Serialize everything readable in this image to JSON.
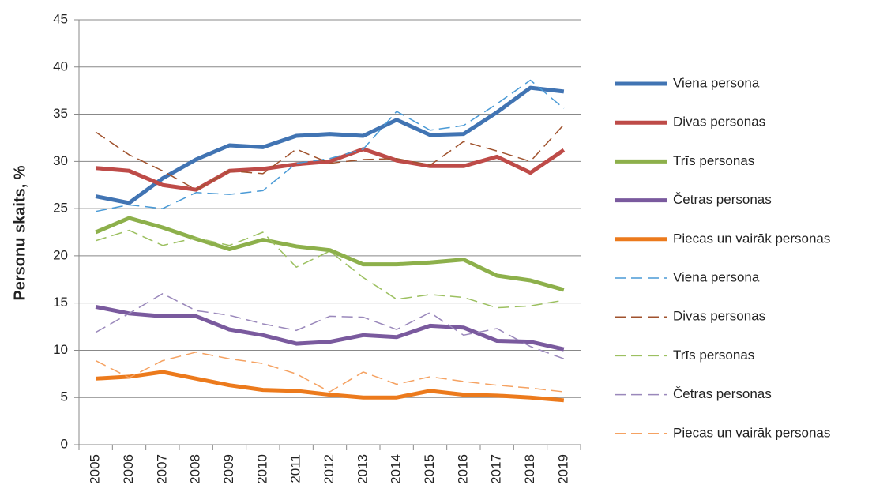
{
  "chart_data": {
    "type": "line",
    "y_label": "Personu skaits, %",
    "categories": [
      "2005",
      "2006",
      "2007",
      "2008",
      "2009",
      "2010",
      "2011",
      "2012",
      "2013",
      "2014",
      "2015",
      "2016",
      "2017",
      "2018",
      "2019"
    ],
    "ylim": [
      0,
      45
    ],
    "yticks": [
      0,
      5,
      10,
      15,
      20,
      25,
      30,
      35,
      40,
      45
    ],
    "grid": true,
    "legend": "right",
    "series": [
      {
        "name": "Viena persona",
        "color": "#4174b3",
        "style": "solid",
        "values": [
          26.3,
          25.6,
          28.2,
          30.2,
          31.7,
          31.5,
          32.7,
          32.9,
          32.7,
          34.4,
          32.8,
          32.9,
          35.2,
          37.8,
          37.4
        ]
      },
      {
        "name": "Divas personas",
        "color": "#be4b48",
        "style": "solid",
        "values": [
          29.3,
          29.0,
          27.5,
          27.0,
          29.0,
          29.2,
          29.7,
          30.0,
          31.3,
          30.1,
          29.5,
          29.5,
          30.5,
          28.8,
          31.2
        ]
      },
      {
        "name": "Trīs personas",
        "color": "#8db04b",
        "style": "solid",
        "values": [
          22.5,
          24.0,
          23.0,
          21.8,
          20.7,
          21.7,
          21.0,
          20.6,
          19.1,
          19.1,
          19.3,
          19.6,
          17.9,
          17.4,
          16.4
        ]
      },
      {
        "name": "Četras personas",
        "color": "#7a5a9e",
        "style": "solid",
        "values": [
          14.6,
          13.9,
          13.6,
          13.6,
          12.2,
          11.6,
          10.7,
          10.9,
          11.6,
          11.4,
          12.6,
          12.4,
          11.0,
          10.9,
          10.1
        ]
      },
      {
        "name": "Piecas un vairāk personas",
        "color": "#ec7a1c",
        "style": "solid",
        "values": [
          7.0,
          7.2,
          7.7,
          7.0,
          6.3,
          5.8,
          5.7,
          5.3,
          5.0,
          5.0,
          5.7,
          5.3,
          5.2,
          5.0,
          4.7
        ]
      },
      {
        "name": "Viena persona",
        "color": "#4a9ad6",
        "style": "dashed",
        "values": [
          24.7,
          25.4,
          25.0,
          26.7,
          26.5,
          26.9,
          29.8,
          30.3,
          31.3,
          35.3,
          33.3,
          33.8,
          36.1,
          38.6,
          35.6
        ]
      },
      {
        "name": "Divas personas",
        "color": "#a0522d",
        "style": "dashed",
        "values": [
          33.1,
          30.7,
          29.0,
          27.0,
          29.0,
          28.7,
          31.3,
          29.8,
          30.2,
          30.3,
          29.6,
          32.1,
          31.1,
          30.0,
          33.9
        ]
      },
      {
        "name": "Trīs personas",
        "color": "#9cc060",
        "style": "dashed",
        "values": [
          21.6,
          22.7,
          21.1,
          21.9,
          21.1,
          22.5,
          18.8,
          20.5,
          17.7,
          15.4,
          15.9,
          15.6,
          14.5,
          14.7,
          15.3
        ]
      },
      {
        "name": "Četras personas",
        "color": "#9a88bb",
        "style": "dashed",
        "values": [
          11.9,
          13.9,
          16.0,
          14.2,
          13.7,
          12.8,
          12.1,
          13.6,
          13.5,
          12.2,
          14.0,
          11.6,
          12.3,
          10.4,
          9.1
        ]
      },
      {
        "name": "Piecas un vairāk personas",
        "color": "#f5a262",
        "style": "dashed",
        "values": [
          8.9,
          7.1,
          8.9,
          9.8,
          9.1,
          8.6,
          7.5,
          5.6,
          7.7,
          6.4,
          7.2,
          6.7,
          6.3,
          6.0,
          5.6
        ]
      }
    ]
  }
}
